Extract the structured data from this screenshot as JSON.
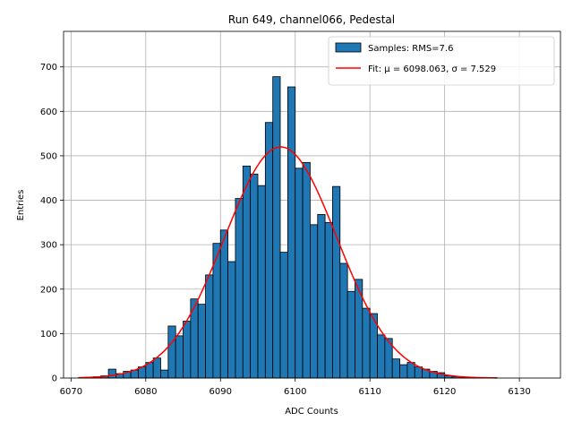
{
  "chart_data": {
    "type": "bar",
    "title": "Run 649, channel066, Pedestal",
    "xlabel": "ADC Counts",
    "ylabel": "Entries",
    "xlim": [
      6069.0,
      6135.5
    ],
    "ylim": [
      0,
      780
    ],
    "xticks": [
      6070,
      6080,
      6090,
      6100,
      6110,
      6120,
      6130
    ],
    "yticks": [
      0,
      100,
      200,
      300,
      400,
      500,
      600,
      700
    ],
    "grid": true,
    "legend_position": "top-right",
    "bin_width": 1,
    "bins": {
      "left_edges": [
        6071,
        6072,
        6073,
        6074,
        6075,
        6076,
        6077,
        6078,
        6079,
        6080,
        6081,
        6082,
        6083,
        6084,
        6085,
        6086,
        6087,
        6088,
        6089,
        6090,
        6091,
        6092,
        6093,
        6094,
        6095,
        6096,
        6097,
        6098,
        6099,
        6100,
        6101,
        6102,
        6103,
        6104,
        6105,
        6106,
        6107,
        6108,
        6109,
        6110,
        6111,
        6112,
        6113,
        6114,
        6115,
        6116,
        6117,
        6118,
        6119,
        6120,
        6121,
        6122,
        6123,
        6124,
        6125,
        6126
      ],
      "counts": [
        1,
        2,
        3,
        5,
        20,
        10,
        15,
        18,
        25,
        35,
        45,
        18,
        117,
        95,
        128,
        178,
        166,
        232,
        303,
        333,
        262,
        404,
        477,
        459,
        433,
        575,
        678,
        283,
        655,
        472,
        485,
        345,
        368,
        350,
        431,
        258,
        195,
        222,
        157,
        145,
        97,
        89,
        43,
        30,
        35,
        25,
        20,
        15,
        12,
        5,
        3,
        2,
        1,
        1,
        0,
        1
      ]
    },
    "series": [
      {
        "name": "Samples: RMS=7.6",
        "kind": "histogram",
        "color": "#1f77b4"
      },
      {
        "name": "Fit: μ = 6098.063, σ = 7.529",
        "kind": "gaussian-fit",
        "mu": 6098.063,
        "sigma": 7.529,
        "amplitude": 520,
        "x_range": [
          6071,
          6127
        ],
        "color": "#ff0000"
      }
    ]
  }
}
